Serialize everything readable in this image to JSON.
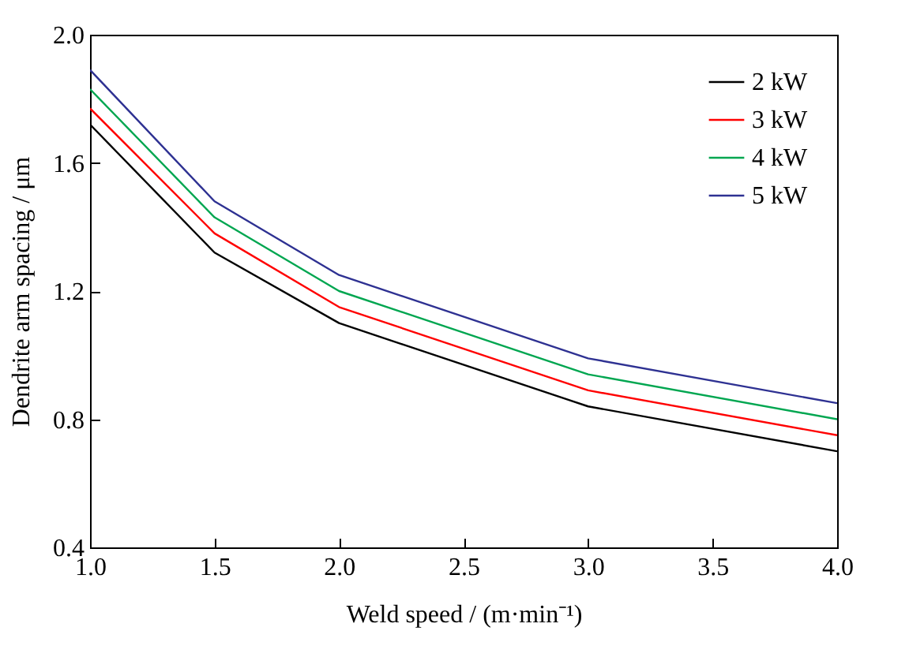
{
  "chart_data": {
    "type": "line",
    "xlabel": "Weld speed / (m·min⁻¹)",
    "ylabel": "Dendrite arm spacing / μm",
    "x": [
      1,
      1.5,
      2,
      3,
      4
    ],
    "series": [
      {
        "name": "2 kW",
        "color": "#000000",
        "values": [
          1.72,
          1.32,
          1.1,
          0.84,
          0.7
        ]
      },
      {
        "name": "3 kW",
        "color": "#ff0000",
        "values": [
          1.77,
          1.38,
          1.15,
          0.89,
          0.75
        ]
      },
      {
        "name": "4 kW",
        "color": "#00a650",
        "values": [
          1.83,
          1.43,
          1.2,
          0.94,
          0.8
        ]
      },
      {
        "name": "5 kW",
        "color": "#2e3192",
        "values": [
          1.89,
          1.48,
          1.25,
          0.99,
          0.85
        ]
      }
    ],
    "xlim": [
      1,
      4
    ],
    "xticks": [
      {
        "value": 1,
        "label": "1.0"
      },
      1.5,
      {
        "value": 2,
        "label": "2.0"
      },
      2.5,
      {
        "value": 3,
        "label": "3.0"
      },
      3.5,
      {
        "value": 4,
        "label": "4.0"
      }
    ],
    "ylim": [
      0.4,
      2
    ],
    "yticks": [
      0.4,
      0.8,
      1.2,
      1.6,
      {
        "value": 2,
        "label": "2.0"
      }
    ],
    "grid": false,
    "legend": "top right",
    "marker": "none",
    "line_style": "solid"
  }
}
